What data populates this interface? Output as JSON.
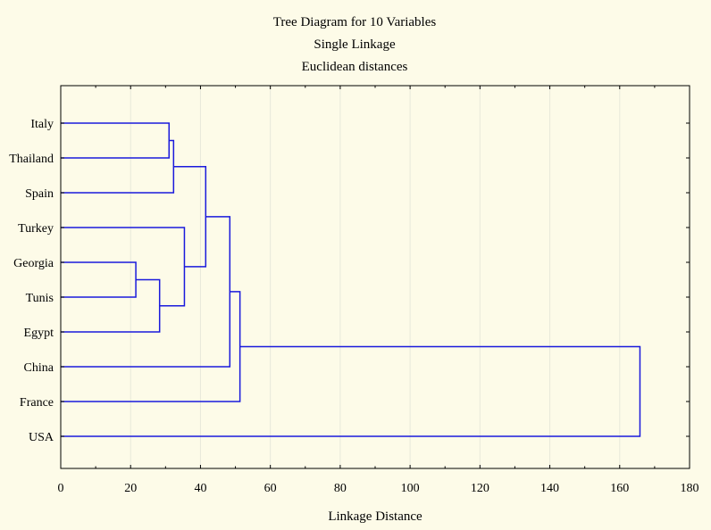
{
  "chart_data": {
    "type": "dendrogram",
    "title_lines": [
      "Tree Diagram for 10  Variables",
      "Single Linkage",
      "Euclidean distances"
    ],
    "xlabel": "Linkage Distance",
    "ylabel": "",
    "xlim": [
      0,
      180
    ],
    "x_ticks": [
      0,
      20,
      40,
      60,
      80,
      100,
      120,
      140,
      160,
      180
    ],
    "grid": "vertical",
    "leaves": [
      "Italy",
      "Thailand",
      "Spain",
      "Turkey",
      "Georgia",
      "Tunis",
      "Egypt",
      "China",
      "France",
      "USA"
    ],
    "merges": [
      {
        "a": "Georgia",
        "b": "Tunis",
        "distance": 21.5
      },
      {
        "a": "Egypt",
        "b": "Georgia+Tunis",
        "distance": 28.3
      },
      {
        "a": "Italy",
        "b": "Thailand",
        "distance": 31.0
      },
      {
        "a": "Italy+Thailand",
        "b": "Spain",
        "distance": 32.3
      },
      {
        "a": "Turkey",
        "b": "Georgia+Tunis+Egypt",
        "distance": 35.4
      },
      {
        "a": "Italy+Thailand+Spain",
        "b": "Turkey+Georgia+Tunis+Egypt",
        "distance": 41.5
      },
      {
        "a": "Italy..Egypt",
        "b": "China",
        "distance": 48.4
      },
      {
        "a": "Italy..China",
        "b": "France",
        "distance": 51.3
      },
      {
        "a": "Italy..France",
        "b": "USA",
        "distance": 165.8
      }
    ],
    "colors": {
      "background": "#fdfbe8",
      "line": "#1a1adc",
      "grid": "#e8e8da",
      "axis": "#000000"
    }
  }
}
